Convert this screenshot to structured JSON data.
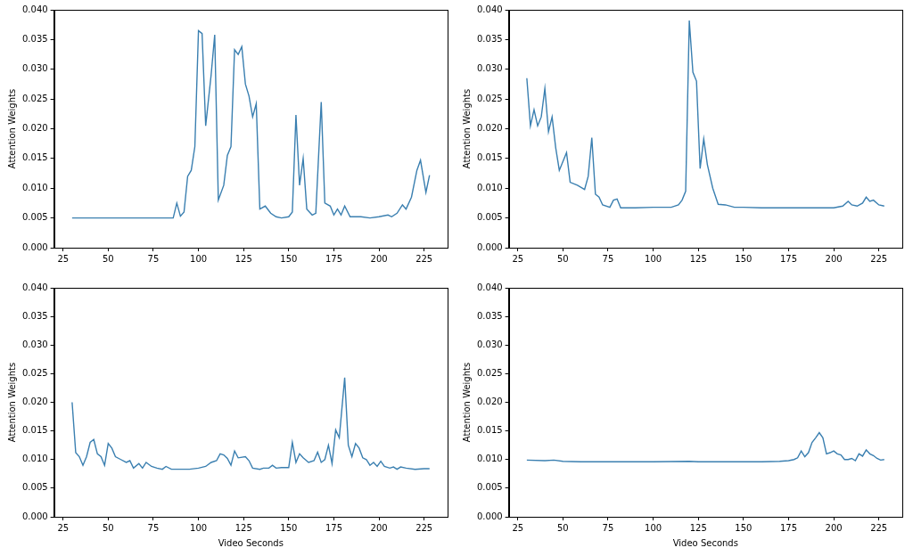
{
  "chart_data": [
    {
      "type": "line",
      "color": "#3a7fb0",
      "grid": false,
      "ylabel": "Attention Weights",
      "xlim": [
        20,
        238
      ],
      "xticks": [
        25,
        50,
        75,
        100,
        125,
        150,
        175,
        200,
        225
      ],
      "ylim": [
        0,
        0.04
      ],
      "yticks": [
        {
          "value": 0,
          "label": "0.000"
        },
        {
          "value": 0.005,
          "label": "0.005"
        },
        {
          "value": 0.01,
          "label": "0.010"
        },
        {
          "value": 0.015,
          "label": "0.015"
        },
        {
          "value": 0.02,
          "label": "0.020"
        },
        {
          "value": 0.025,
          "label": "0.025"
        },
        {
          "value": 0.03,
          "label": "0.030"
        },
        {
          "value": 0.035,
          "label": "0.035"
        },
        {
          "value": 0.04,
          "label": "0.040"
        }
      ],
      "x": [
        30,
        40,
        50,
        60,
        70,
        80,
        86,
        88,
        90,
        92,
        94,
        96,
        98,
        100,
        102,
        104,
        107,
        109,
        111,
        114,
        116,
        118,
        120,
        122,
        124,
        126,
        128,
        130,
        132,
        134,
        137,
        140,
        143,
        146,
        150,
        152,
        154,
        156,
        158,
        160,
        163,
        165,
        168,
        170,
        173,
        175,
        177,
        179,
        181,
        184,
        190,
        195,
        200,
        205,
        207,
        210,
        213,
        215,
        218,
        221,
        223,
        226,
        228
      ],
      "values": [
        0.005,
        0.005,
        0.005,
        0.005,
        0.005,
        0.005,
        0.005,
        0.0075,
        0.0053,
        0.006,
        0.012,
        0.013,
        0.017,
        0.0365,
        0.036,
        0.0205,
        0.029,
        0.0358,
        0.008,
        0.0105,
        0.0155,
        0.017,
        0.0333,
        0.0325,
        0.0338,
        0.0275,
        0.0255,
        0.022,
        0.0242,
        0.0065,
        0.007,
        0.0058,
        0.0052,
        0.005,
        0.0052,
        0.006,
        0.0223,
        0.0105,
        0.015,
        0.0065,
        0.0055,
        0.0058,
        0.0245,
        0.0075,
        0.007,
        0.0055,
        0.0065,
        0.0055,
        0.007,
        0.0052,
        0.0052,
        0.005,
        0.0052,
        0.0055,
        0.0052,
        0.0058,
        0.0072,
        0.0065,
        0.0085,
        0.013,
        0.0147,
        0.0093,
        0.0122
      ]
    },
    {
      "type": "line",
      "color": "#3a7fb0",
      "grid": false,
      "ylabel": "Attention Weights",
      "xlim": [
        20,
        238
      ],
      "xticks": [
        25,
        50,
        75,
        100,
        125,
        150,
        175,
        200,
        225
      ],
      "ylim": [
        0,
        0.04
      ],
      "yticks": [
        {
          "value": 0,
          "label": "0.000"
        },
        {
          "value": 0.005,
          "label": "0.005"
        },
        {
          "value": 0.01,
          "label": "0.010"
        },
        {
          "value": 0.015,
          "label": "0.015"
        },
        {
          "value": 0.02,
          "label": "0.020"
        },
        {
          "value": 0.025,
          "label": "0.025"
        },
        {
          "value": 0.03,
          "label": "0.030"
        },
        {
          "value": 0.035,
          "label": "0.035"
        },
        {
          "value": 0.04,
          "label": "0.040"
        }
      ],
      "x": [
        30,
        32,
        34,
        36,
        38,
        40,
        42,
        44,
        46,
        48,
        50,
        52,
        54,
        58,
        62,
        64,
        66,
        68,
        70,
        72,
        76,
        78,
        80,
        82,
        90,
        100,
        110,
        114,
        116,
        118,
        120,
        122,
        124,
        126,
        128,
        130,
        133,
        136,
        140,
        145,
        150,
        160,
        180,
        200,
        205,
        208,
        210,
        213,
        216,
        218,
        220,
        222,
        225,
        228
      ],
      "values": [
        0.0285,
        0.0205,
        0.0232,
        0.0205,
        0.022,
        0.0268,
        0.0195,
        0.022,
        0.0168,
        0.013,
        0.0145,
        0.016,
        0.011,
        0.0105,
        0.0098,
        0.012,
        0.0185,
        0.009,
        0.0085,
        0.0072,
        0.0068,
        0.008,
        0.0082,
        0.0067,
        0.0067,
        0.0068,
        0.0068,
        0.0072,
        0.008,
        0.0095,
        0.0382,
        0.0295,
        0.028,
        0.0133,
        0.0183,
        0.014,
        0.01,
        0.0073,
        0.0072,
        0.0068,
        0.0068,
        0.0067,
        0.0067,
        0.0067,
        0.007,
        0.0078,
        0.0072,
        0.007,
        0.0075,
        0.0085,
        0.0078,
        0.008,
        0.0072,
        0.007
      ]
    },
    {
      "type": "line",
      "color": "#3a7fb0",
      "grid": false,
      "ylabel": "Attention Weights",
      "xlabel": "Video Seconds",
      "xlim": [
        20,
        238
      ],
      "xticks": [
        25,
        50,
        75,
        100,
        125,
        150,
        175,
        200,
        225
      ],
      "ylim": [
        0,
        0.04
      ],
      "yticks": [
        {
          "value": 0,
          "label": "0.000"
        },
        {
          "value": 0.005,
          "label": "0.005"
        },
        {
          "value": 0.01,
          "label": "0.010"
        },
        {
          "value": 0.015,
          "label": "0.015"
        },
        {
          "value": 0.02,
          "label": "0.020"
        },
        {
          "value": 0.025,
          "label": "0.025"
        },
        {
          "value": 0.03,
          "label": "0.030"
        },
        {
          "value": 0.035,
          "label": "0.035"
        },
        {
          "value": 0.04,
          "label": "0.040"
        }
      ],
      "x": [
        30,
        32,
        34,
        36,
        38,
        40,
        42,
        44,
        46,
        48,
        50,
        52,
        54,
        57,
        60,
        62,
        64,
        67,
        69,
        71,
        74,
        77,
        80,
        82,
        85,
        90,
        95,
        100,
        104,
        107,
        110,
        112,
        114,
        116,
        118,
        120,
        122,
        126,
        128,
        130,
        134,
        136,
        139,
        141,
        143,
        146,
        150,
        152,
        154,
        156,
        158,
        161,
        164,
        166,
        168,
        170,
        172,
        174,
        176,
        178,
        181,
        183,
        185,
        187,
        189,
        191,
        193,
        195,
        197,
        199,
        201,
        203,
        206,
        208,
        210,
        212,
        215,
        220,
        225,
        228
      ],
      "values": [
        0.02,
        0.0112,
        0.0105,
        0.009,
        0.0105,
        0.013,
        0.0135,
        0.011,
        0.0105,
        0.009,
        0.0128,
        0.012,
        0.0105,
        0.01,
        0.0095,
        0.0098,
        0.0085,
        0.0093,
        0.0085,
        0.0095,
        0.0088,
        0.0085,
        0.0083,
        0.0088,
        0.0083,
        0.0083,
        0.0083,
        0.0085,
        0.0088,
        0.0095,
        0.0098,
        0.011,
        0.0108,
        0.0102,
        0.009,
        0.0115,
        0.0103,
        0.0105,
        0.0098,
        0.0085,
        0.0083,
        0.0085,
        0.0085,
        0.009,
        0.0085,
        0.0086,
        0.0086,
        0.013,
        0.0095,
        0.011,
        0.0103,
        0.0095,
        0.0098,
        0.0113,
        0.0095,
        0.01,
        0.0125,
        0.0093,
        0.0152,
        0.0138,
        0.0243,
        0.0125,
        0.0105,
        0.0128,
        0.012,
        0.0103,
        0.01,
        0.009,
        0.0095,
        0.0088,
        0.0097,
        0.0088,
        0.0085,
        0.0087,
        0.0083,
        0.0087,
        0.0085,
        0.0083,
        0.0084,
        0.0084
      ]
    },
    {
      "type": "line",
      "color": "#3a7fb0",
      "grid": false,
      "ylabel": "Attention Weights",
      "xlabel": "Video Seconds",
      "xlim": [
        20,
        238
      ],
      "xticks": [
        25,
        50,
        75,
        100,
        125,
        150,
        175,
        200,
        225
      ],
      "ylim": [
        0,
        0.04
      ],
      "yticks": [
        {
          "value": 0,
          "label": "0.000"
        },
        {
          "value": 0.005,
          "label": "0.005"
        },
        {
          "value": 0.01,
          "label": "0.010"
        },
        {
          "value": 0.015,
          "label": "0.015"
        },
        {
          "value": 0.02,
          "label": "0.020"
        },
        {
          "value": 0.025,
          "label": "0.025"
        },
        {
          "value": 0.03,
          "label": "0.030"
        },
        {
          "value": 0.035,
          "label": "0.035"
        },
        {
          "value": 0.04,
          "label": "0.040"
        }
      ],
      "x": [
        30,
        40,
        45,
        50,
        60,
        80,
        100,
        120,
        125,
        140,
        160,
        170,
        175,
        178,
        180,
        182,
        184,
        186,
        188,
        190,
        192,
        194,
        196,
        198,
        200,
        202,
        204,
        206,
        208,
        210,
        212,
        214,
        216,
        218,
        220,
        222,
        224,
        226,
        228
      ],
      "values": [
        0.0099,
        0.0098,
        0.0099,
        0.0097,
        0.0096,
        0.0096,
        0.0096,
        0.0097,
        0.0096,
        0.0096,
        0.0096,
        0.0097,
        0.0098,
        0.01,
        0.0103,
        0.0115,
        0.0105,
        0.0112,
        0.013,
        0.0138,
        0.0147,
        0.0138,
        0.011,
        0.0112,
        0.0115,
        0.011,
        0.0108,
        0.01,
        0.01,
        0.0102,
        0.0098,
        0.011,
        0.0106,
        0.0117,
        0.011,
        0.0107,
        0.0102,
        0.0099,
        0.01
      ]
    }
  ]
}
